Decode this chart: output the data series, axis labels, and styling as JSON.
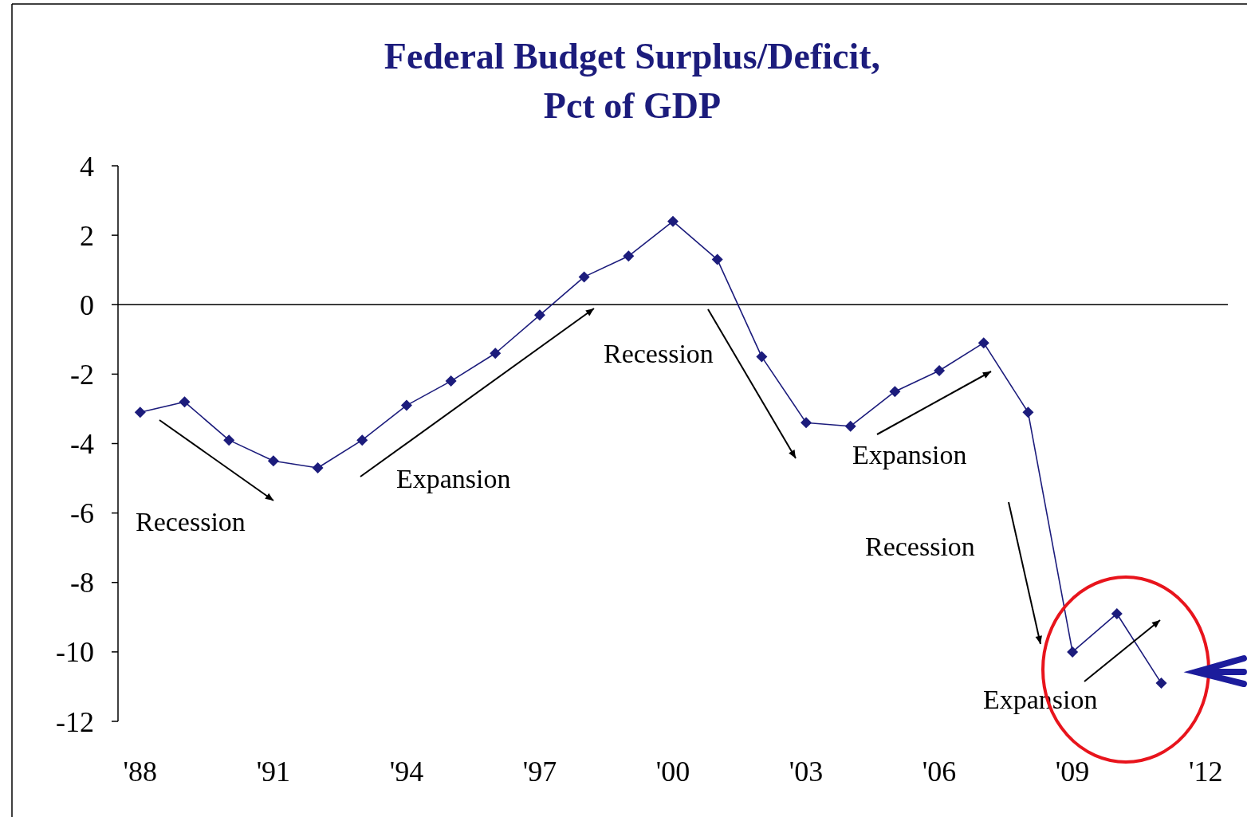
{
  "chart_data": {
    "type": "line",
    "title": "Federal Budget Surplus/Deficit,\nPct of GDP",
    "x": [
      1988,
      1989,
      1990,
      1991,
      1992,
      1993,
      1994,
      1995,
      1996,
      1997,
      1998,
      1999,
      2000,
      2001,
      2002,
      2003,
      2004,
      2005,
      2006,
      2007,
      2008,
      2009,
      2010,
      2011
    ],
    "series": [
      {
        "color": "#1c1c7c",
        "values": [
          -3.1,
          -2.8,
          -3.9,
          -4.5,
          -4.7,
          -3.9,
          -2.9,
          -2.2,
          -1.4,
          -0.3,
          0.8,
          1.4,
          2.4,
          1.3,
          -1.5,
          -3.4,
          -3.5,
          -2.5,
          -1.9,
          -1.1,
          -3.1,
          -10.0,
          -8.9,
          -10.9
        ]
      }
    ],
    "xlim": [
      1987.5,
      2012.5
    ],
    "xticks": [
      {
        "value": 1988,
        "label": "'88"
      },
      {
        "value": 1991,
        "label": "'91"
      },
      {
        "value": 1994,
        "label": "'94"
      },
      {
        "value": 1997,
        "label": "'97"
      },
      {
        "value": 2000,
        "label": "'00"
      },
      {
        "value": 2003,
        "label": "'03"
      },
      {
        "value": 2006,
        "label": "'06"
      },
      {
        "value": 2009,
        "label": "'09"
      },
      {
        "value": 2012,
        "label": "'12"
      }
    ],
    "ylim": [
      -12,
      4
    ],
    "yticks": [
      -12,
      -10,
      -8,
      -6,
      -4,
      -2,
      0,
      2,
      4
    ],
    "ref_lines": [
      {
        "axis": "y",
        "value": 0,
        "color": "#000000"
      }
    ],
    "marker": "diamond",
    "grid": false,
    "annotations": [
      "Recession",
      "Expansion",
      "Recession",
      "Expansion",
      "Recession",
      "Expansion"
    ]
  }
}
